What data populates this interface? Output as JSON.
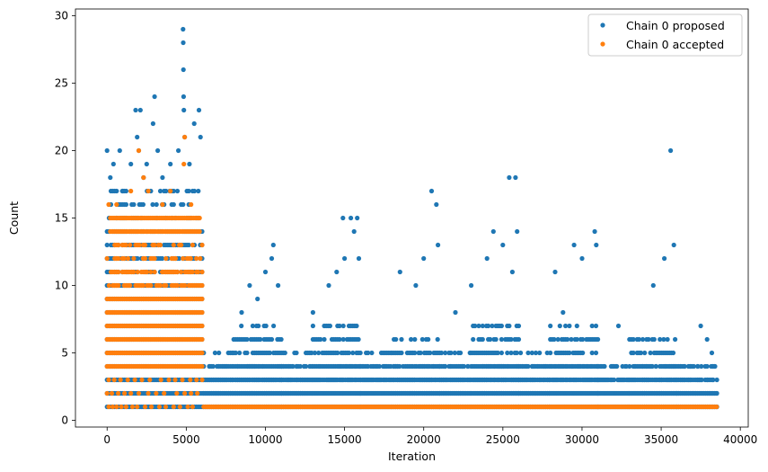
{
  "chart_data": {
    "type": "scatter",
    "xlabel": "Iteration",
    "ylabel": "Count",
    "xlim": [
      -2000,
      40500
    ],
    "ylim": [
      -0.5,
      30.5
    ],
    "x_ticks": [
      0,
      5000,
      10000,
      15000,
      20000,
      25000,
      30000,
      35000,
      40000
    ],
    "y_ticks": [
      0,
      5,
      10,
      15,
      20,
      25,
      30
    ],
    "grid": false,
    "legend_position": "top-right",
    "colors": {
      "proposed": "#1f77b4",
      "accepted": "#ff7f0e"
    },
    "series": [
      {
        "name": "Chain 0 proposed",
        "color": "#1f77b4",
        "marker": "circle",
        "bands": [
          {
            "x_start": 0,
            "x_end": 6100,
            "y_min": 1,
            "y_max": 17
          },
          {
            "x_start": 6100,
            "x_end": 38600,
            "y_min": 1,
            "y_max": 4
          },
          {
            "x_start": 6100,
            "x_end": 8000,
            "y_min": 1,
            "y_max": 5
          },
          {
            "x_start": 8000,
            "x_end": 11000,
            "y_min": 1,
            "y_max": 7
          },
          {
            "x_start": 11000,
            "x_end": 13000,
            "y_min": 1,
            "y_max": 5
          },
          {
            "x_start": 13000,
            "x_end": 16000,
            "y_min": 1,
            "y_max": 7
          },
          {
            "x_start": 16000,
            "x_end": 18000,
            "y_min": 1,
            "y_max": 5
          },
          {
            "x_start": 18000,
            "x_end": 21000,
            "y_min": 1,
            "y_max": 6
          },
          {
            "x_start": 21000,
            "x_end": 23000,
            "y_min": 1,
            "y_max": 5
          },
          {
            "x_start": 23000,
            "x_end": 26000,
            "y_min": 1,
            "y_max": 7
          },
          {
            "x_start": 26000,
            "x_end": 28000,
            "y_min": 1,
            "y_max": 5
          },
          {
            "x_start": 28000,
            "x_end": 31000,
            "y_min": 1,
            "y_max": 7
          },
          {
            "x_start": 31000,
            "x_end": 33000,
            "y_min": 1,
            "y_max": 4
          },
          {
            "x_start": 33000,
            "x_end": 36000,
            "y_min": 1,
            "y_max": 6
          },
          {
            "x_start": 36000,
            "x_end": 38600,
            "y_min": 1,
            "y_max": 4
          }
        ],
        "outliers": [
          [
            0,
            20
          ],
          [
            200,
            18
          ],
          [
            400,
            19
          ],
          [
            800,
            20
          ],
          [
            1000,
            17
          ],
          [
            1500,
            19
          ],
          [
            1800,
            23
          ],
          [
            1900,
            21
          ],
          [
            2000,
            20
          ],
          [
            2100,
            23
          ],
          [
            2300,
            18
          ],
          [
            2500,
            19
          ],
          [
            2900,
            22
          ],
          [
            3000,
            24
          ],
          [
            3200,
            20
          ],
          [
            3500,
            18
          ],
          [
            4000,
            19
          ],
          [
            4500,
            20
          ],
          [
            4800,
            29
          ],
          [
            4810,
            28
          ],
          [
            4820,
            26
          ],
          [
            4830,
            24
          ],
          [
            4850,
            23
          ],
          [
            4900,
            21
          ],
          [
            5200,
            19
          ],
          [
            5500,
            22
          ],
          [
            5800,
            23
          ],
          [
            5900,
            21
          ],
          [
            8500,
            8
          ],
          [
            9000,
            10
          ],
          [
            9500,
            9
          ],
          [
            10000,
            11
          ],
          [
            10400,
            12
          ],
          [
            10500,
            13
          ],
          [
            10800,
            10
          ],
          [
            13000,
            8
          ],
          [
            14000,
            10
          ],
          [
            14500,
            11
          ],
          [
            14900,
            15
          ],
          [
            15000,
            12
          ],
          [
            15400,
            15
          ],
          [
            15600,
            14
          ],
          [
            15800,
            15
          ],
          [
            15900,
            12
          ],
          [
            18500,
            11
          ],
          [
            19500,
            10
          ],
          [
            20000,
            12
          ],
          [
            20500,
            17
          ],
          [
            20800,
            16
          ],
          [
            20900,
            13
          ],
          [
            22000,
            8
          ],
          [
            23000,
            10
          ],
          [
            24000,
            12
          ],
          [
            24400,
            14
          ],
          [
            25000,
            13
          ],
          [
            25400,
            18
          ],
          [
            25800,
            18
          ],
          [
            25900,
            14
          ],
          [
            25600,
            11
          ],
          [
            28300,
            11
          ],
          [
            28800,
            8
          ],
          [
            29500,
            13
          ],
          [
            30000,
            12
          ],
          [
            30800,
            14
          ],
          [
            30900,
            13
          ],
          [
            32300,
            7
          ],
          [
            34500,
            10
          ],
          [
            35200,
            12
          ],
          [
            35600,
            20
          ],
          [
            35800,
            13
          ],
          [
            37500,
            7
          ],
          [
            37900,
            6
          ],
          [
            38200,
            5
          ]
        ]
      },
      {
        "name": "Chain 0 accepted",
        "color": "#ff7f0e",
        "marker": "circle",
        "bands": [
          {
            "x_start": 0,
            "x_end": 6100,
            "y_min": 4,
            "y_max": 13
          },
          {
            "x_start": 200,
            "x_end": 5900,
            "y_min": 14,
            "y_max": 15
          },
          {
            "x_start": 6100,
            "x_end": 38600,
            "y_min": 1,
            "y_max": 1
          }
        ],
        "sparse_low": [
          [
            100,
            1
          ],
          [
            350,
            1
          ],
          [
            600,
            1
          ],
          [
            900,
            1
          ],
          [
            1200,
            1
          ],
          [
            1600,
            1
          ],
          [
            1900,
            1
          ],
          [
            2400,
            1
          ],
          [
            2800,
            1
          ],
          [
            3300,
            1
          ],
          [
            3700,
            1
          ],
          [
            4200,
            1
          ],
          [
            4600,
            1
          ],
          [
            5100,
            1
          ],
          [
            5400,
            1
          ],
          [
            0,
            2
          ],
          [
            300,
            2
          ],
          [
            700,
            2
          ],
          [
            1100,
            2
          ],
          [
            1500,
            2
          ],
          [
            2000,
            2
          ],
          [
            2600,
            2
          ],
          [
            3100,
            2
          ],
          [
            3600,
            2
          ],
          [
            4400,
            2
          ],
          [
            4900,
            2
          ],
          [
            5300,
            2
          ],
          [
            5700,
            2
          ],
          [
            100,
            3
          ],
          [
            450,
            3
          ],
          [
            850,
            3
          ],
          [
            1300,
            3
          ],
          [
            1750,
            3
          ],
          [
            2200,
            3
          ],
          [
            2700,
            3
          ],
          [
            3400,
            3
          ],
          [
            3900,
            3
          ],
          [
            4300,
            3
          ],
          [
            4750,
            3
          ],
          [
            5250,
            3
          ],
          [
            5650,
            3
          ],
          [
            6000,
            3
          ]
        ],
        "outliers": [
          [
            100,
            16
          ],
          [
            600,
            16
          ],
          [
            1500,
            17
          ],
          [
            2000,
            20
          ],
          [
            2300,
            18
          ],
          [
            2600,
            17
          ],
          [
            3500,
            16
          ],
          [
            4000,
            17
          ],
          [
            4900,
            21
          ],
          [
            4850,
            19
          ],
          [
            5300,
            16
          ]
        ]
      }
    ]
  }
}
